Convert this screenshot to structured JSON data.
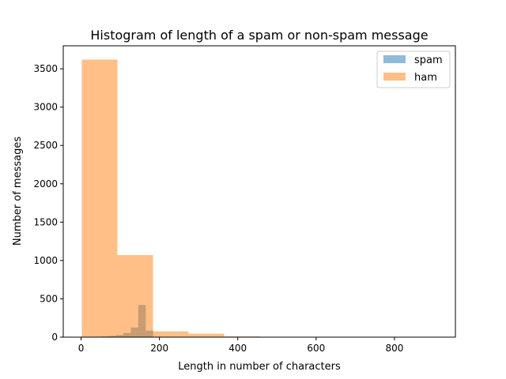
{
  "chart_data": {
    "type": "bar",
    "title": "Histogram of length of a spam or non-spam message",
    "xlabel": "Length in number of characters",
    "ylabel": "Number of messages",
    "xlim": [
      -45.5,
      955.5
    ],
    "ylim": [
      0,
      3800
    ],
    "xticks": [
      0,
      200,
      400,
      600,
      800
    ],
    "yticks": [
      0,
      500,
      1000,
      1500,
      2000,
      2500,
      3000,
      3500
    ],
    "grid": false,
    "legend_position": "top-right",
    "series": [
      {
        "name": "spam",
        "color": "#1f77b4",
        "opacity": 0.5,
        "bin_edges": [
          13,
          32,
          51,
          70,
          89,
          108,
          127,
          146,
          165,
          184,
          203
        ],
        "counts": [
          3,
          6,
          10,
          18,
          28,
          55,
          125,
          420,
          85,
          3
        ]
      },
      {
        "name": "ham",
        "color": "#ff7f0e",
        "opacity": 0.5,
        "bin_edges": [
          2,
          92.8,
          183.6,
          274.4,
          365.2,
          456,
          546.8,
          637.6,
          728.4,
          819.2,
          910
        ],
        "counts": [
          3620,
          1070,
          75,
          45,
          10,
          2,
          1,
          0,
          1,
          1
        ]
      }
    ]
  }
}
